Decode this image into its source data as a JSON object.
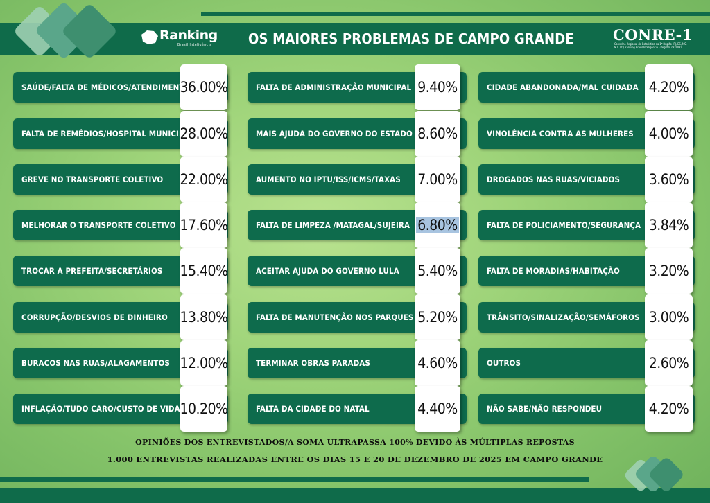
{
  "header": {
    "title": "OS MAIORES PROBLEMAS DE CAMPO GRANDE",
    "logo_left_name": "Ranking",
    "logo_left_sub": "Brasil Inteligência",
    "logo_right_name": "CONRE-1",
    "logo_right_sub": "Conselho Regional de Estatística da 1ª Região (RJ, ES, MS, MT, TO) Ranking Brasil Inteligência - Registro nº 0000"
  },
  "columns": [
    [
      {
        "label": "SAÚDE/FALTA DE MÉDICOS/ATENDIMENTO",
        "value": "36.00%"
      },
      {
        "label": "FALTA DE REMÉDIOS/HOSPITAL MUNICIPAL",
        "value": "28.00%"
      },
      {
        "label": "GREVE NO TRANSPORTE COLETIVO",
        "value": "22.00%"
      },
      {
        "label": "MELHORAR O TRANSPORTE COLETIVO",
        "value": "17.60%"
      },
      {
        "label": "TROCAR A PREFEITA/SECRETÁRIOS",
        "value": "15.40%"
      },
      {
        "label": "CORRUPÇÃO/DESVIOS DE DINHEIRO",
        "value": "13.80%"
      },
      {
        "label": "BURACOS NAS RUAS/ALAGAMENTOS",
        "value": "12.00%"
      },
      {
        "label": "INFLAÇÃO/TUDO CARO/CUSTO DE VIDA",
        "value": "10.20%"
      }
    ],
    [
      {
        "label": "FALTA DE ADMINISTRAÇÃO MUNICIPAL",
        "value": "9.40%"
      },
      {
        "label": "MAIS AJUDA DO GOVERNO DO ESTADO",
        "value": "8.60%"
      },
      {
        "label": "AUMENTO NO IPTU/ISS/ICMS/TAXAS",
        "value": "7.00%"
      },
      {
        "label": "FALTA DE LIMPEZA /MATAGAL/SUJEIRA",
        "value": "6.80%",
        "highlight": true
      },
      {
        "label": "ACEITAR AJUDA DO GOVERNO LULA",
        "value": "5.40%"
      },
      {
        "label": "FALTA DE MANUTENÇÃO NOS PARQUES",
        "value": "5.20%"
      },
      {
        "label": "TERMINAR OBRAS PARADAS",
        "value": "4.60%"
      },
      {
        "label": "FALTA DA CIDADE DO NATAL",
        "value": "4.40%"
      }
    ],
    [
      {
        "label": "CIDADE ABANDONADA/MAL CUIDADA",
        "value": "4.20%"
      },
      {
        "label": "VINOLÊNCIA CONTRA AS MULHERES",
        "value": "4.00%"
      },
      {
        "label": "DROGADOS NAS RUAS/VICIADOS",
        "value": "3.60%"
      },
      {
        "label": "FALTA DE POLICIAMENTO/SEGURANÇA",
        "value": "3.84%"
      },
      {
        "label": "FALTA DE MORADIAS/HABITAÇÃO",
        "value": "3.20%"
      },
      {
        "label": "TRÂNSITO/SINALIZAÇÃO/SEMÁFOROS",
        "value": "3.00%"
      },
      {
        "label": "OUTROS",
        "value": "2.60%"
      },
      {
        "label": "NÃO SABE/NÃO RESPONDEU",
        "value": "4.20%"
      }
    ]
  ],
  "footer": {
    "line1": "OPINIÕES DOS ENTREVISTADOS/A SOMA ULTRAPASSA 100% DEVIDO ÀS MÚLTIPLAS REPOSTAS",
    "line2": "1.000 ENTREVISTAS REALIZADAS ENTRE OS DIAS 15 E 20 DE DEZEMBRO DE 2025 EM CAMPO GRANDE"
  },
  "colors": {
    "brand_green": "#0f6b4a",
    "label_green": "#0e6b4c",
    "highlight": "#a8c4e0"
  }
}
